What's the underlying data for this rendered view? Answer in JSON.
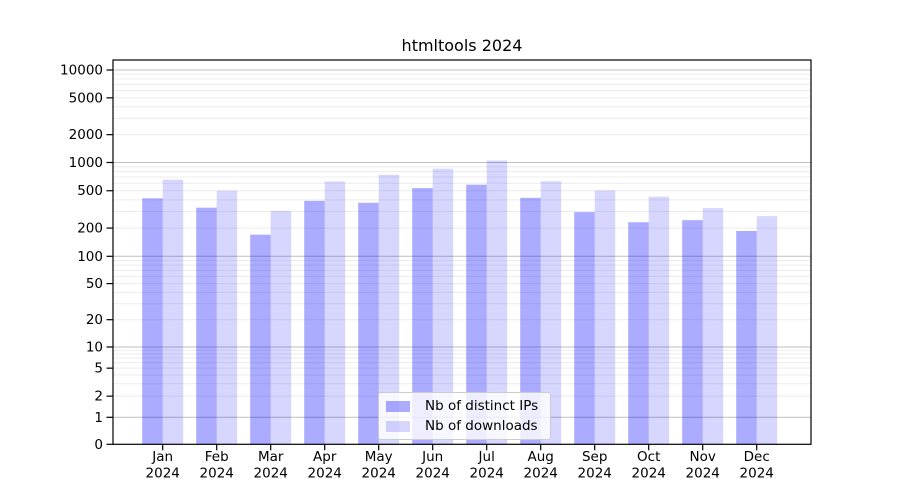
{
  "chart_data": {
    "type": "bar",
    "title": "htmltools 2024",
    "scale": "symlog",
    "categories": [
      "Jan",
      "Feb",
      "Mar",
      "Apr",
      "May",
      "Jun",
      "Jul",
      "Aug",
      "Sep",
      "Oct",
      "Nov",
      "Dec"
    ],
    "category_year": "2024",
    "series": [
      {
        "name": "Nb of distinct IPs",
        "color": "#0000ff54",
        "values": [
          415,
          330,
          170,
          390,
          372,
          533,
          580,
          420,
          296,
          231,
          243,
          186
        ]
      },
      {
        "name": "Nb of downloads",
        "color": "#0000ff29",
        "values": [
          656,
          501,
          305,
          628,
          740,
          858,
          1052,
          631,
          503,
          432,
          326,
          268
        ]
      }
    ],
    "yticks": [
      0,
      1,
      2,
      5,
      10,
      20,
      50,
      100,
      200,
      500,
      1000,
      2000,
      5000,
      10000
    ],
    "ylim": [
      0,
      10000
    ],
    "xlabel": "",
    "ylabel": "",
    "grid": "on",
    "legend_position": "bottom-center"
  },
  "colors": {
    "major_grid": "#bfbfbf",
    "minor_grid": "#ececec",
    "spine": "#000000",
    "text": "#000000",
    "background": "#ffffff"
  }
}
